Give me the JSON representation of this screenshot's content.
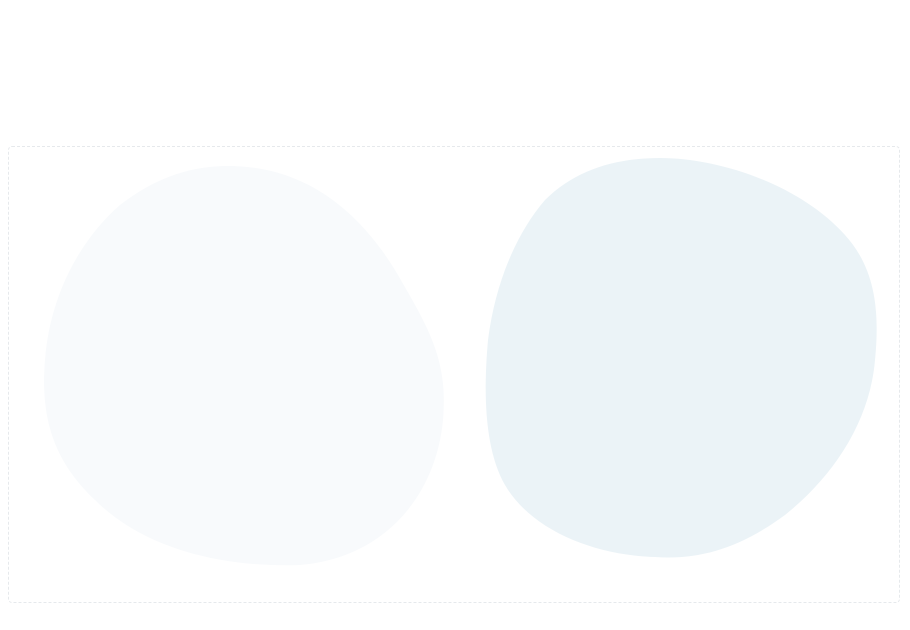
{
  "colors": {
    "background": "#ffffff",
    "frame_border": "#e6e9ec",
    "blob_left": "#f8fafc",
    "blob_right": "#ebf3f7"
  }
}
